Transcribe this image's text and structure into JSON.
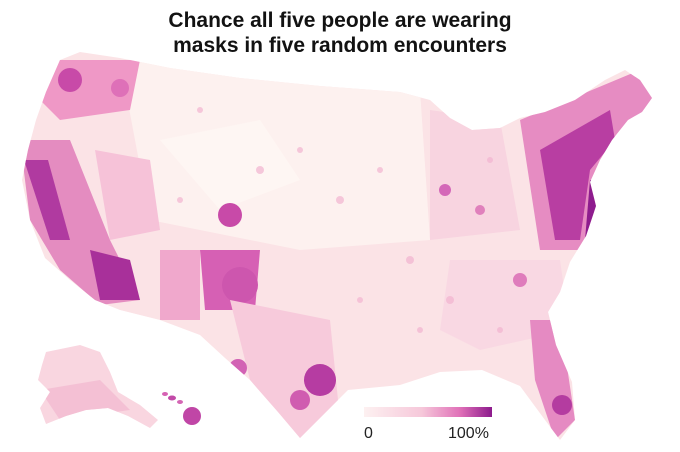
{
  "title": {
    "line1": "Chance all five people are wearing",
    "line2": "masks in five random encounters"
  },
  "legend": {
    "min_label": "0",
    "max_label": "100%",
    "color_low": "#fdf1f1",
    "color_mid": "#f0a0c8",
    "color_high": "#8c1a8c"
  },
  "map": {
    "regions": [
      "contiguous-us",
      "alaska",
      "hawaii"
    ]
  }
}
